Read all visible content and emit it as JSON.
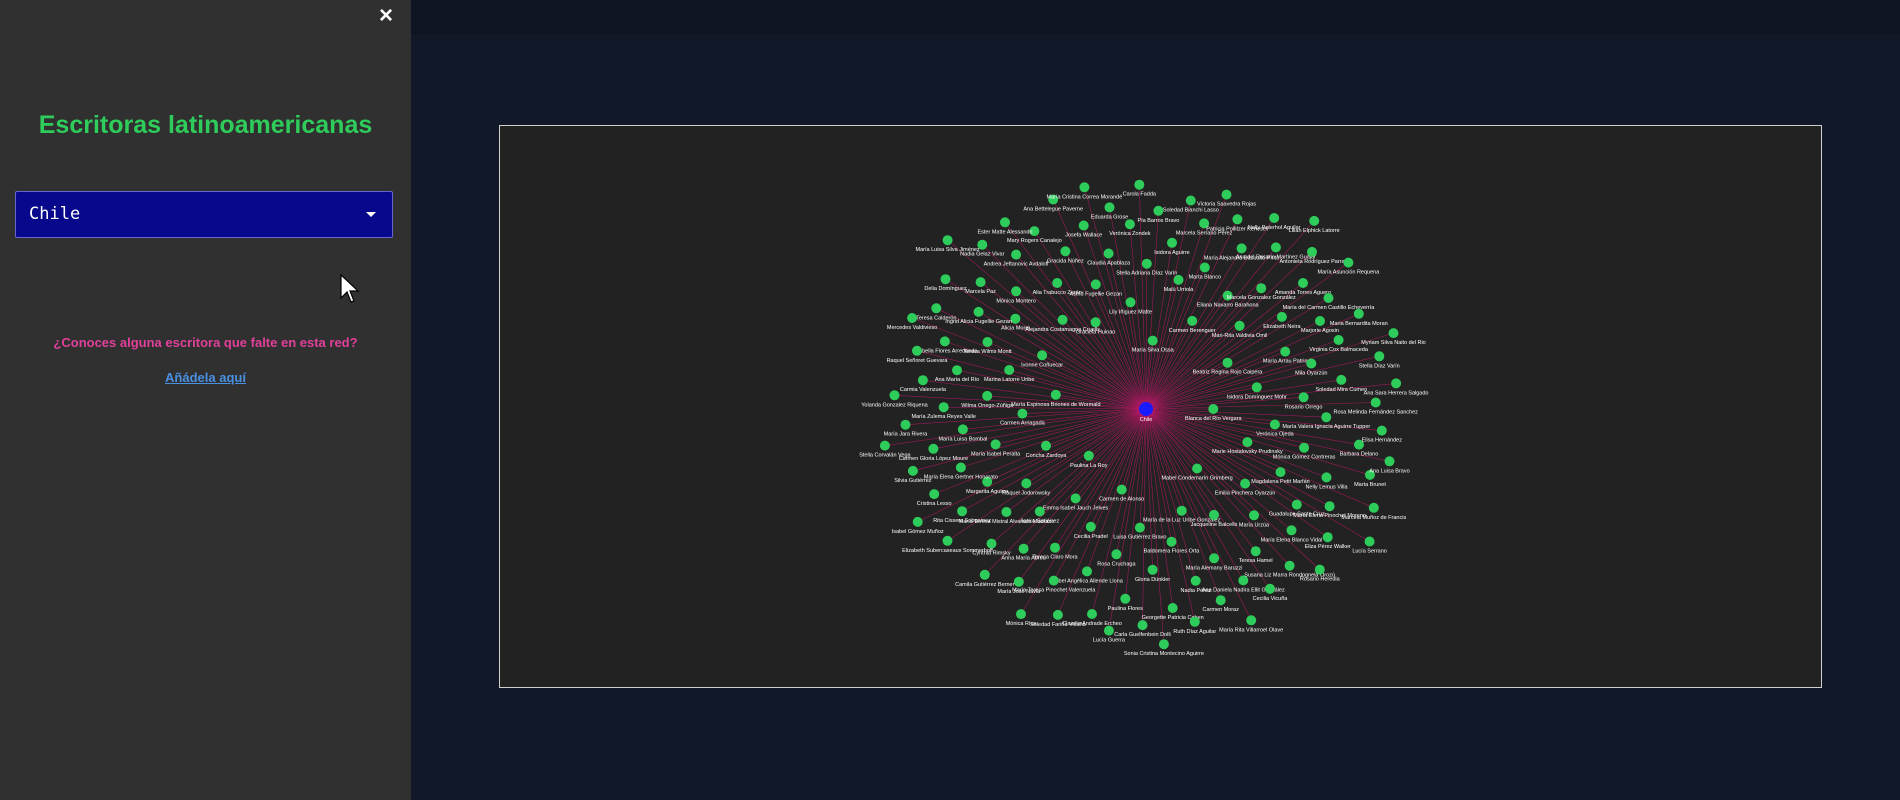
{
  "sidebar": {
    "close_label": "×",
    "title": "Escritoras latinoamericanas",
    "country_select": {
      "value": "Chile"
    },
    "question": "¿Conoces alguna escritora que falte en esta red?",
    "add_link": "Añádela aquí"
  },
  "graph": {
    "center": {
      "label": "Chile",
      "color": "#1a1aff"
    },
    "node_color": "#2ecc5a",
    "edge_color": "#c2186b",
    "nodes": [
      "Blanca del Río Vergara",
      "Paulina La Roy",
      "María Silva Ossa",
      "Mabel Condemarín Grimberg",
      "María Espinosa Briones de Wormald",
      "Beatriz Regina Rojo Caipera",
      "Carmen de Alonso",
      "Graciela Huinao",
      "Marie Hostalovsky Prudinsky",
      "Concha Zardoya",
      "Carmen Berenguer",
      "María de la Luz Uribe González",
      "Ivonne Coñuecar",
      "Isidora Domínguez Mohr",
      "Emma Isabel Jauch Jelves",
      "Lily Iñiguez Matte",
      "Emilia Pinchera Oyarzún",
      "Carmen Arriagada",
      "Mari-Rita Valdivia Omil",
      "Luisa Gutiérrez Bravo",
      "Alejandra Costamagna Cruells",
      "Verónica Ojeda",
      "Raquel Jodorowsky",
      "Malú Urriola",
      "Jacqueline Balcells",
      "Marina Latorre Uribe",
      "María Arrau Patria",
      "Cecilia Pradel",
      "Astrid Fugellie Gezan",
      "Magdalena Petit Marfán",
      "María Isabel Peralta",
      "Eliana Navarro Barahona",
      "Baldomera Flores Orta",
      "Alicia Morel",
      "Rosario Orrego",
      "Ilonka Gutiérrez",
      "Stella Adriana Díaz Varín",
      "María Urzúa",
      "Wilma Onego-Zúñiga",
      "Elizabeth Neira",
      "Rosa Cruchaga",
      "Alia Trabucco Zerán",
      "Mónica Gómez Contreras",
      "Margarita Aguirre",
      "Marta Blanco",
      "María Alemany Baruzzi",
      "Teresa Wilms Montt",
      "Mila Oyarzún",
      "Teresa Claro Mora",
      "Claudia Apablaza",
      "Guadalupe Santa Cruz",
      "María Luisa Bombal",
      "Marcela Gonzalez González",
      "Gloria Dünkler",
      "Mónica Montero",
      "María Valera Ignacia Aguirre Tupper",
      "María Teresa Mistral Alvarado Madrazo",
      "Isidora Aguirre",
      "Teresa Hamel",
      "Ana María del Río",
      "Marjorie Agosin",
      "Isabel Angélica Allende Llona",
      "Gracida Núñez",
      "Nelly Lemus Villa",
      "María Elena Gertner Honorato",
      "María Alejandra Basualto Pinto",
      "Nadia Pérez",
      "Ingrid Alicia Fugellie Gezan",
      "Soledad Mira Cumeo",
      "Anna María Abreu",
      "Verónica Zondek",
      "María Elena Blanco Vidal",
      "María Zulema Reyes Valle",
      "Amanda Torres Aguero",
      "Paulina Flores",
      "Andrea Jeftanovic Avdaloff",
      "Barbara Delano",
      "Rita Cissero Sobgomez",
      "Marcela Serrano Pérez",
      "Ana Daniela Nadira Ellit González",
      "Anabella Flores Arredondo",
      "Virginia Cox Balmaceda",
      "María Teresa Pinochet Valenzuela",
      "Josefa Wallace",
      "María Elena Pinochet Moreno",
      "Carmen Gloria López Moure",
      "Ana del Rosario Martínez Guajar",
      "Georgette Patricia Cohen",
      "Marcela Paz",
      "Rosa Melinda Fernández Sanchez",
      "Cynthia Rimsky",
      "Pía Barros Bravo",
      "Susana Liz Marra Rondognela Orozú",
      "Carmia Valenzuela",
      "María del Carmen Castillo Echeverría",
      "Claudia Andrade Ercheo",
      "Mary Rogers Canalejo",
      "Marta Brunet",
      "Cristina Lesso",
      "Patricia Pollitzer Kenesev",
      "Carmen Moraz",
      "Teresa Calderón",
      "Stella Díaz Varín",
      "María José Navia",
      "Eduarda Grose",
      "Eliza Pérez Walker",
      "María Jara Rivera",
      "Antonieta Rodríguez Parra",
      "Carla Guelfenbein Dolli",
      "Nadia Gelaz Vivar",
      "Elisa Hernández",
      "Elizabeth Subercaseaux Sommerhoff",
      "Soledad Bianchi Lasso",
      "Cecilia Vicuña",
      "Raquel Señoret Guevara",
      "Maria Bernardita Moran",
      "Soledad Fariña Vicuña",
      "Ana Bettelegue Paverne",
      "Marcela Muñoz de Francis",
      "Silvia Gutiérrez",
      "Nelly Peterhol Aguilar",
      "Ruth Díaz Aguilar",
      "Delia Domínguez",
      "Ana Sara Herrera Salgado",
      "Camila Gutiérrez Berner",
      "Carola Fadda",
      "Rosario Heredia",
      "Yolanda Gonzalez Riquena",
      "María Asunción Requena",
      "Lucía Guerra",
      "Ester Matte Alessandri",
      "Ana Luisa Bravo",
      "Isabel Gómez Muñoz",
      "Victoria Saavedra Rojas",
      "María Rita Villarroel Olave",
      "Mercedes Valdivieso",
      "Myriam Silva Naito del Rio",
      "Mónica Ríos",
      "María Cristina Correa Morandé",
      "Lucía Serrano",
      "Stella Corvalán Vega",
      "Lilian Elphick Latorre",
      "Sonia Cristina Montecino Aguirre",
      "María Luisa Silva Jiménez"
    ]
  }
}
